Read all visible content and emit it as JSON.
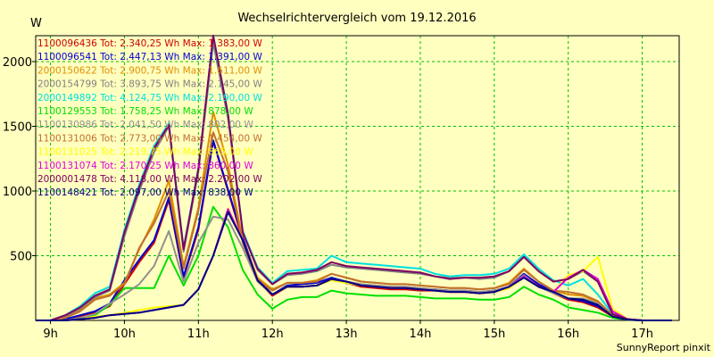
{
  "chart_data": {
    "type": "line",
    "title": "Wechselrichtervergleich vom 19.12.2016",
    "ylabel": "W",
    "footer": "SunnyReport pinxit",
    "ylim": [
      0,
      2200
    ],
    "yticks": [
      500,
      1000,
      1500,
      2000
    ],
    "xlim": [
      8.8,
      17.5
    ],
    "xticks": [
      9,
      10,
      11,
      12,
      13,
      14,
      15,
      16,
      17
    ],
    "xtick_labels": [
      "9h",
      "10h",
      "11h",
      "12h",
      "13h",
      "14h",
      "15h",
      "16h",
      "17h"
    ],
    "grid": true,
    "legend_position": "top-left",
    "x": [
      8.8,
      9.0,
      9.2,
      9.4,
      9.6,
      9.8,
      10.0,
      10.2,
      10.4,
      10.6,
      10.8,
      11.0,
      11.2,
      11.4,
      11.6,
      11.8,
      12.0,
      12.2,
      12.4,
      12.6,
      12.8,
      13.0,
      13.2,
      13.4,
      13.6,
      13.8,
      14.0,
      14.2,
      14.4,
      14.6,
      14.8,
      15.0,
      15.2,
      15.4,
      15.6,
      15.8,
      16.0,
      16.2,
      16.4,
      16.6,
      16.8,
      17.0,
      17.2,
      17.4
    ],
    "series": [
      {
        "name": "1100096436 Tot: 2.340,25 Wh Max: 1.383,00 W",
        "color": "#d00000",
        "values": [
          0,
          0,
          10,
          30,
          60,
          110,
          280,
          450,
          600,
          930,
          330,
          700,
          1383,
          1000,
          620,
          310,
          190,
          260,
          260,
          270,
          320,
          290,
          260,
          250,
          240,
          240,
          230,
          230,
          220,
          220,
          210,
          220,
          250,
          350,
          270,
          210,
          160,
          140,
          100,
          30,
          5,
          0,
          0,
          0
        ]
      },
      {
        "name": "1100096541 Tot: 2.447,13 Wh Max: 1.391,00 W",
        "color": "#0000d0",
        "values": [
          0,
          0,
          10,
          40,
          70,
          130,
          310,
          470,
          620,
          950,
          340,
          720,
          1391,
          1010,
          640,
          320,
          200,
          270,
          280,
          290,
          330,
          300,
          270,
          260,
          250,
          250,
          240,
          240,
          230,
          230,
          220,
          230,
          260,
          360,
          280,
          220,
          170,
          150,
          110,
          40,
          10,
          0,
          0,
          0
        ]
      },
      {
        "name": "2000150622 Tot: 2.900,75 Wh Max: 1.611,00 W",
        "color": "#e09000",
        "values": [
          0,
          0,
          20,
          80,
          170,
          200,
          290,
          550,
          780,
          1080,
          420,
          870,
          1611,
          1200,
          620,
          330,
          240,
          290,
          290,
          310,
          360,
          330,
          300,
          290,
          280,
          280,
          270,
          260,
          250,
          250,
          240,
          250,
          290,
          400,
          300,
          230,
          200,
          190,
          140,
          40,
          10,
          0,
          0,
          0
        ]
      },
      {
        "name": "2000154799 Tot: 3.893,75 Wh Max: 2.145,00 W",
        "color": "#808080",
        "values": [
          0,
          0,
          30,
          90,
          180,
          230,
          650,
          1000,
          1300,
          1500,
          530,
          1150,
          2145,
          1560,
          690,
          390,
          280,
          350,
          360,
          380,
          430,
          410,
          400,
          390,
          380,
          370,
          360,
          340,
          330,
          330,
          320,
          330,
          380,
          500,
          400,
          300,
          320,
          380,
          300,
          50,
          10,
          0,
          0,
          0
        ]
      },
      {
        "name": "2000149892 Tot: 4.124,75 Wh Max: 2.190,00 W",
        "color": "#00e0e0",
        "values": [
          0,
          0,
          40,
          110,
          210,
          260,
          700,
          1050,
          1350,
          1520,
          560,
          1180,
          2190,
          1600,
          690,
          410,
          290,
          380,
          390,
          400,
          500,
          450,
          440,
          430,
          420,
          410,
          400,
          360,
          340,
          350,
          350,
          360,
          400,
          510,
          400,
          310,
          270,
          320,
          200,
          50,
          10,
          0,
          0,
          0
        ]
      },
      {
        "name": "1100129553 Tot: 1.758,25 Wh Max: 878,00 W",
        "color": "#00e000",
        "values": [
          0,
          0,
          0,
          20,
          40,
          120,
          250,
          250,
          250,
          500,
          270,
          500,
          878,
          720,
          390,
          200,
          90,
          160,
          180,
          180,
          230,
          210,
          200,
          190,
          190,
          190,
          180,
          170,
          170,
          170,
          160,
          160,
          180,
          260,
          200,
          160,
          100,
          80,
          60,
          20,
          5,
          0,
          0,
          0
        ]
      },
      {
        "name": "1100130986 Tot: 2.041,50 Wh Max: 802,00 W",
        "color": "#909090",
        "values": [
          0,
          0,
          0,
          20,
          50,
          130,
          200,
          280,
          420,
          690,
          300,
          600,
          802,
          780,
          560,
          300,
          200,
          260,
          260,
          270,
          320,
          300,
          280,
          270,
          260,
          260,
          250,
          240,
          230,
          230,
          220,
          230,
          260,
          350,
          260,
          210,
          170,
          170,
          130,
          40,
          10,
          0,
          0,
          0
        ]
      },
      {
        "name": "1100131006 Tot: 2.773,00 Wh Max: 1.454,00 W",
        "color": "#c07030",
        "values": [
          0,
          0,
          20,
          70,
          160,
          190,
          280,
          560,
          750,
          1000,
          400,
          850,
          1454,
          1150,
          600,
          310,
          230,
          290,
          290,
          300,
          360,
          330,
          300,
          290,
          280,
          280,
          270,
          260,
          250,
          250,
          240,
          250,
          280,
          390,
          300,
          230,
          220,
          200,
          150,
          40,
          10,
          0,
          0,
          0
        ]
      },
      {
        "name": "1100131025 Tot: 2.219,75 Wh Max: 865,00 W",
        "color": "#ffff00",
        "values": [
          0,
          0,
          0,
          10,
          30,
          40,
          60,
          80,
          100,
          110,
          120,
          240,
          500,
          865,
          620,
          310,
          200,
          260,
          260,
          270,
          310,
          290,
          270,
          260,
          250,
          250,
          240,
          230,
          220,
          220,
          210,
          220,
          250,
          330,
          260,
          220,
          350,
          380,
          490,
          90,
          10,
          0,
          0,
          0
        ]
      },
      {
        "name": "1100131074 Tot: 2.170,25 Wh Max: 860,00 W",
        "color": "#e000e0",
        "values": [
          0,
          0,
          0,
          10,
          20,
          40,
          50,
          60,
          80,
          100,
          120,
          240,
          500,
          860,
          620,
          310,
          200,
          260,
          260,
          270,
          320,
          300,
          270,
          260,
          250,
          250,
          240,
          230,
          220,
          220,
          210,
          220,
          260,
          340,
          260,
          220,
          330,
          390,
          320,
          70,
          10,
          0,
          0,
          0
        ]
      },
      {
        "name": "2000001478 Tot: 4.118,00 Wh Max: 2.202,00 W",
        "color": "#800060",
        "values": [
          0,
          0,
          40,
          100,
          190,
          240,
          680,
          1030,
          1330,
          1510,
          550,
          1170,
          2202,
          1590,
          680,
          400,
          280,
          360,
          370,
          390,
          450,
          420,
          410,
          400,
          390,
          380,
          370,
          340,
          320,
          330,
          330,
          340,
          380,
          490,
          380,
          300,
          320,
          390,
          300,
          50,
          10,
          0,
          0,
          0
        ]
      },
      {
        "name": "1100148421 Tot: 2.097,00 Wh Max: 838,00 W",
        "color": "#000080",
        "values": [
          0,
          0,
          0,
          10,
          20,
          40,
          50,
          60,
          80,
          100,
          120,
          240,
          500,
          838,
          620,
          310,
          200,
          260,
          260,
          270,
          320,
          300,
          270,
          260,
          250,
          250,
          240,
          230,
          220,
          220,
          210,
          220,
          260,
          330,
          260,
          220,
          170,
          160,
          120,
          30,
          5,
          0,
          0,
          0
        ]
      }
    ]
  }
}
